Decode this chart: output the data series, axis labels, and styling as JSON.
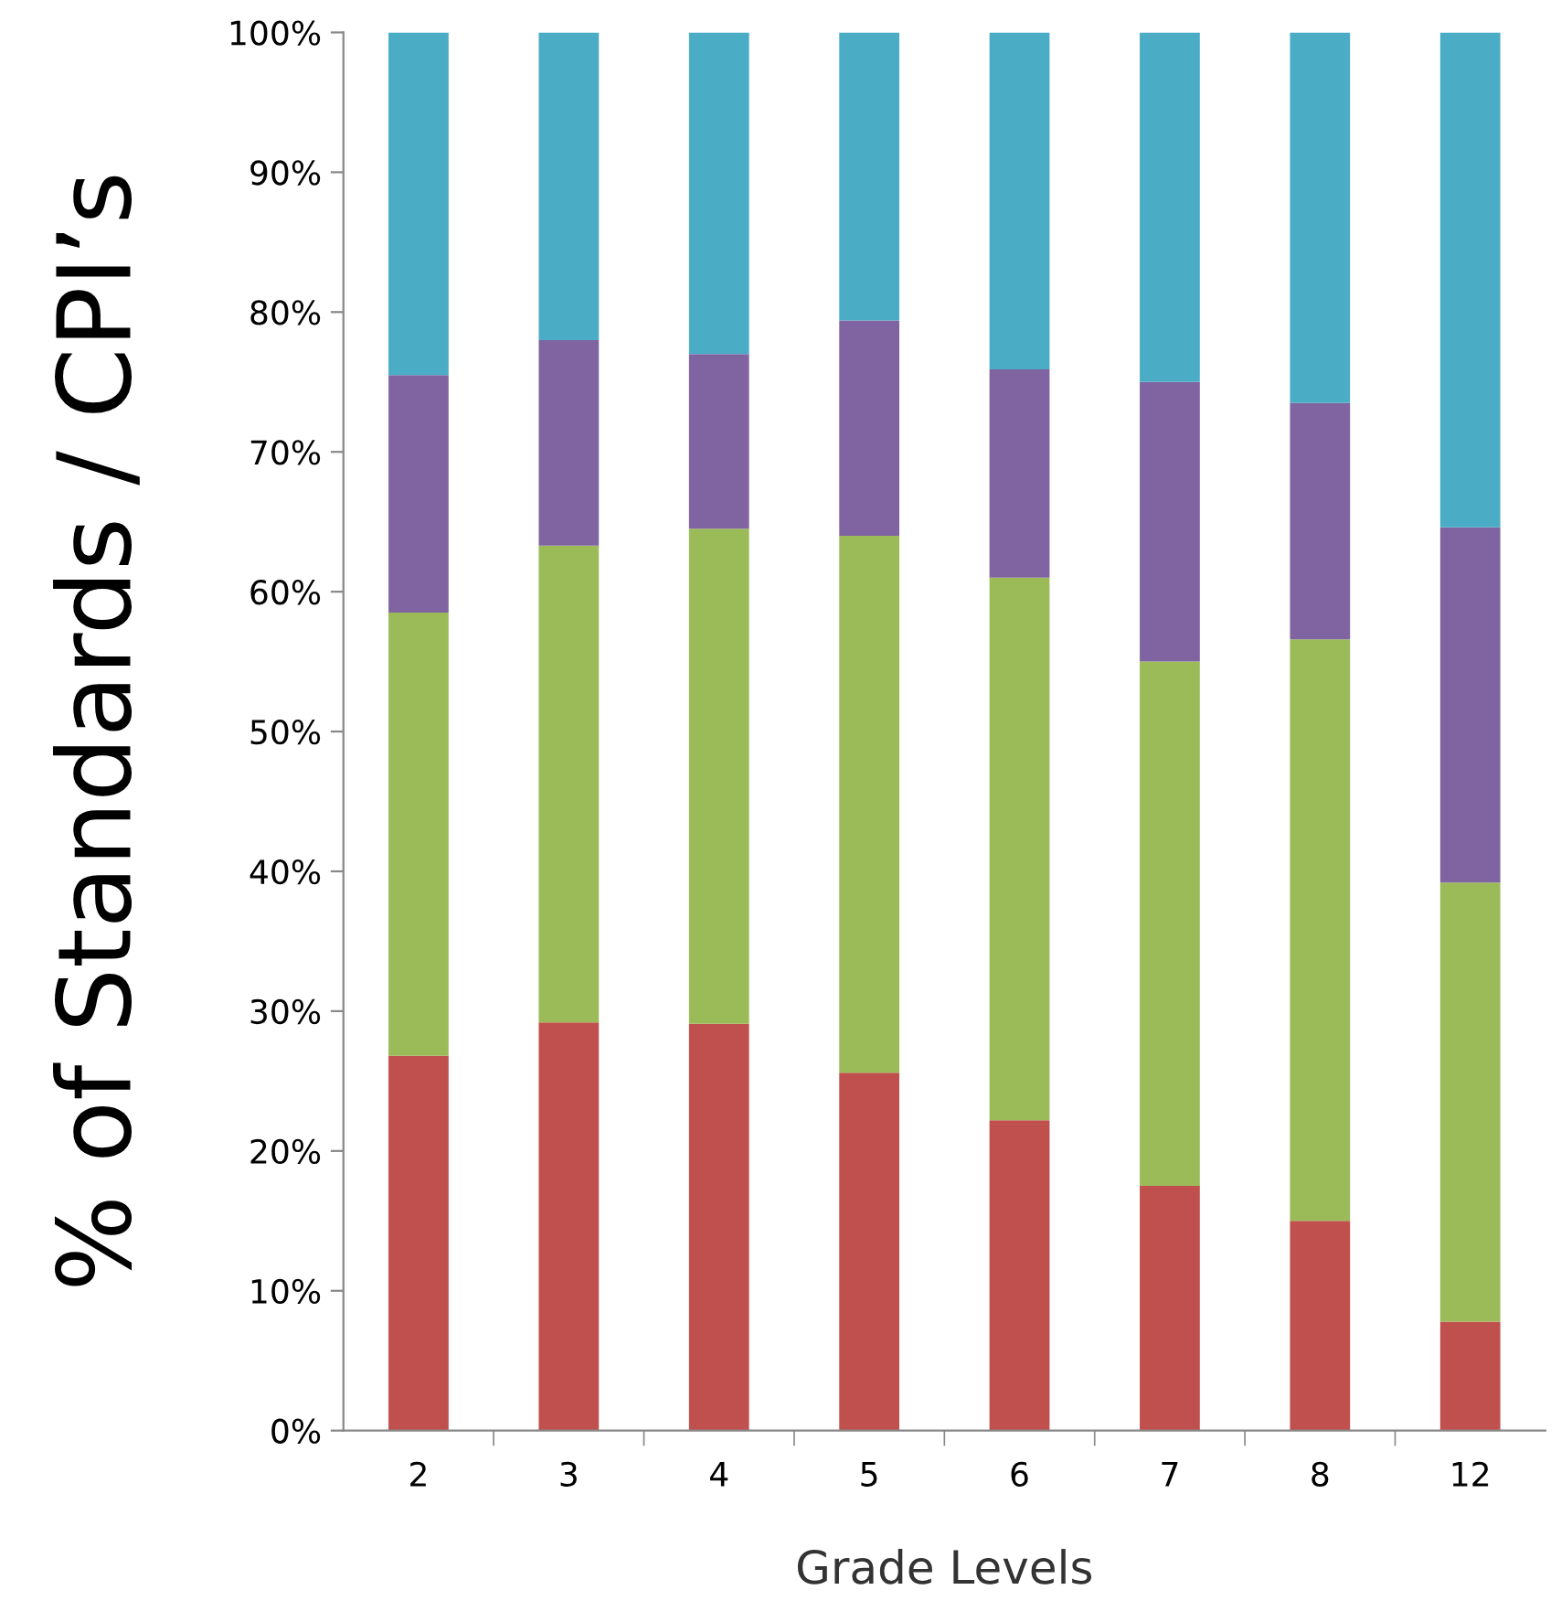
{
  "chart_data": {
    "type": "bar",
    "stacked": true,
    "xlabel": "Grade Levels",
    "ylabel": "% of Standards / CPI’s",
    "categories": [
      "2",
      "3",
      "4",
      "5",
      "6",
      "7",
      "8",
      "12"
    ],
    "series": [
      {
        "color": "#c0504d",
        "values": [
          26.8,
          29.2,
          29.1,
          25.6,
          22.2,
          17.5,
          15.0,
          7.8
        ]
      },
      {
        "color": "#9bbb59",
        "values": [
          31.7,
          34.1,
          35.4,
          38.4,
          38.8,
          37.5,
          41.6,
          31.4
        ]
      },
      {
        "color": "#8064a2",
        "values": [
          17.0,
          14.7,
          12.5,
          15.4,
          14.9,
          20.0,
          16.9,
          25.4
        ]
      },
      {
        "color": "#4bacc6",
        "values": [
          24.5,
          22.0,
          23.0,
          20.6,
          24.1,
          25.0,
          26.5,
          35.4
        ]
      }
    ],
    "ylim": [
      0,
      100
    ],
    "yticks": [
      {
        "value": 0,
        "label": "0%"
      },
      {
        "value": 10,
        "label": "10%"
      },
      {
        "value": 20,
        "label": "20%"
      },
      {
        "value": 30,
        "label": "30%"
      },
      {
        "value": 40,
        "label": "40%"
      },
      {
        "value": 50,
        "label": "50%"
      },
      {
        "value": 60,
        "label": "60%"
      },
      {
        "value": 70,
        "label": "70%"
      },
      {
        "value": 80,
        "label": "80%"
      },
      {
        "value": 90,
        "label": "90%"
      },
      {
        "value": 100,
        "label": "100%"
      }
    ],
    "grid": false
  }
}
